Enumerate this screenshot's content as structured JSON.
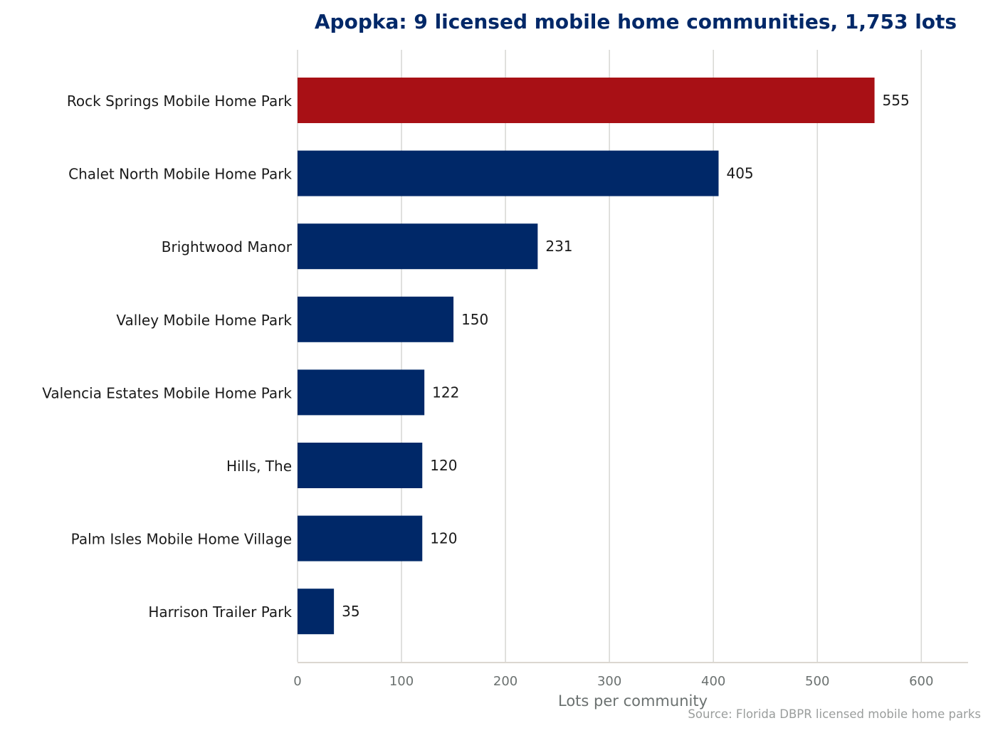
{
  "chart_data": {
    "type": "bar",
    "orientation": "horizontal",
    "title": "Apopka: 9 licensed mobile home communities, 1,753 lots",
    "xlabel": "Lots per community",
    "ylabel": "",
    "source": "Source: Florida DBPR licensed mobile home parks",
    "categories": [
      "Rock Springs Mobile Home Park",
      "Chalet North Mobile Home Park",
      "Brightwood Manor",
      "Valley Mobile Home Park",
      "Valencia Estates Mobile Home Park",
      "Hills, The",
      "Palm Isles Mobile Home Village",
      "Harrison Trailer Park"
    ],
    "values": [
      555,
      405,
      231,
      150,
      122,
      120,
      120,
      35
    ],
    "value_labels": [
      "555",
      "405",
      "231",
      "150",
      "122",
      "120",
      "120",
      "35"
    ],
    "highlight_index": 0,
    "xlim": [
      0,
      645
    ],
    "xticks": [
      0,
      100,
      200,
      300,
      400,
      500,
      600
    ],
    "xtick_labels": [
      "0",
      "100",
      "200",
      "300",
      "400",
      "500",
      "600"
    ],
    "grid": "vertical",
    "colors": {
      "highlight": "#a81015",
      "bar": "#002868",
      "title": "#002868",
      "category_text": "#1a1a1a",
      "value_text": "#1a1a1a",
      "tick_text": "#6b7170",
      "axis_title": "#6b7170",
      "source_text": "#9a9d9c",
      "grid": "#d9d9d6",
      "axis_line": "#cfcac0"
    }
  }
}
